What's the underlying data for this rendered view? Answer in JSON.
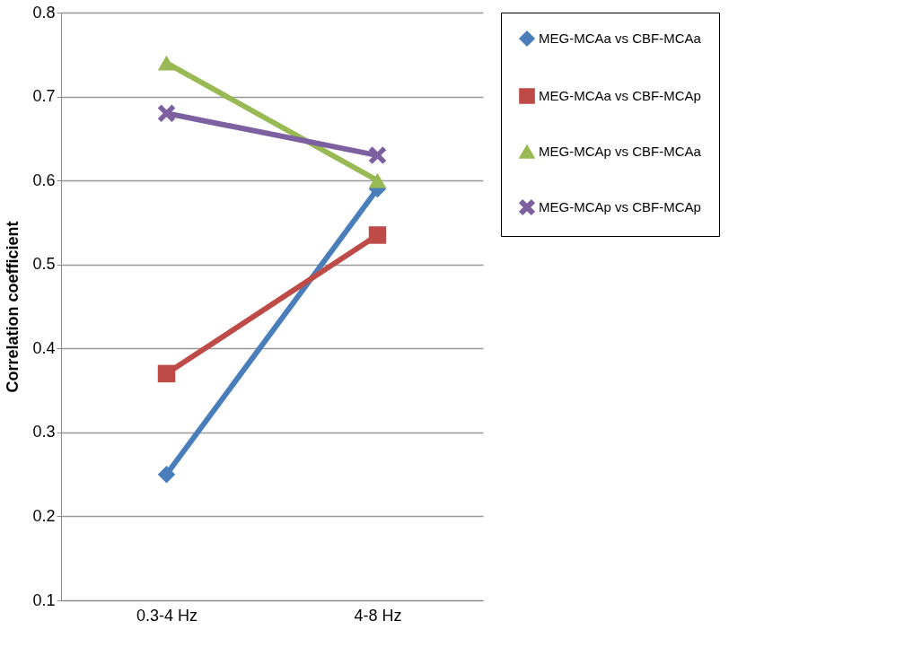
{
  "chart_data": {
    "type": "line",
    "ylabel": "Correlation coefficient",
    "categories": [
      "0.3-4 Hz",
      "4-8 Hz"
    ],
    "series": [
      {
        "name": "MEG-MCAa vs CBF-MCAa",
        "color": "#4a7ebb",
        "marker": "diamond",
        "values": [
          0.25,
          0.59
        ]
      },
      {
        "name": "MEG-MCAa vs CBF-MCAp",
        "color": "#be4b48",
        "marker": "square",
        "values": [
          0.37,
          0.535
        ]
      },
      {
        "name": "MEG-MCAp vs CBF-MCAa",
        "color": "#98b954",
        "marker": "triangle",
        "values": [
          0.74,
          0.6
        ]
      },
      {
        "name": "MEG-MCAp vs CBF-MCAp",
        "color": "#7d60a0",
        "marker": "cross",
        "values": [
          0.68,
          0.63
        ]
      }
    ],
    "ylim": [
      0.1,
      0.8
    ],
    "yticks": [
      0.1,
      0.2,
      0.3,
      0.4,
      0.5,
      0.6,
      0.7,
      0.8
    ],
    "grid": "y",
    "legend": "right"
  }
}
